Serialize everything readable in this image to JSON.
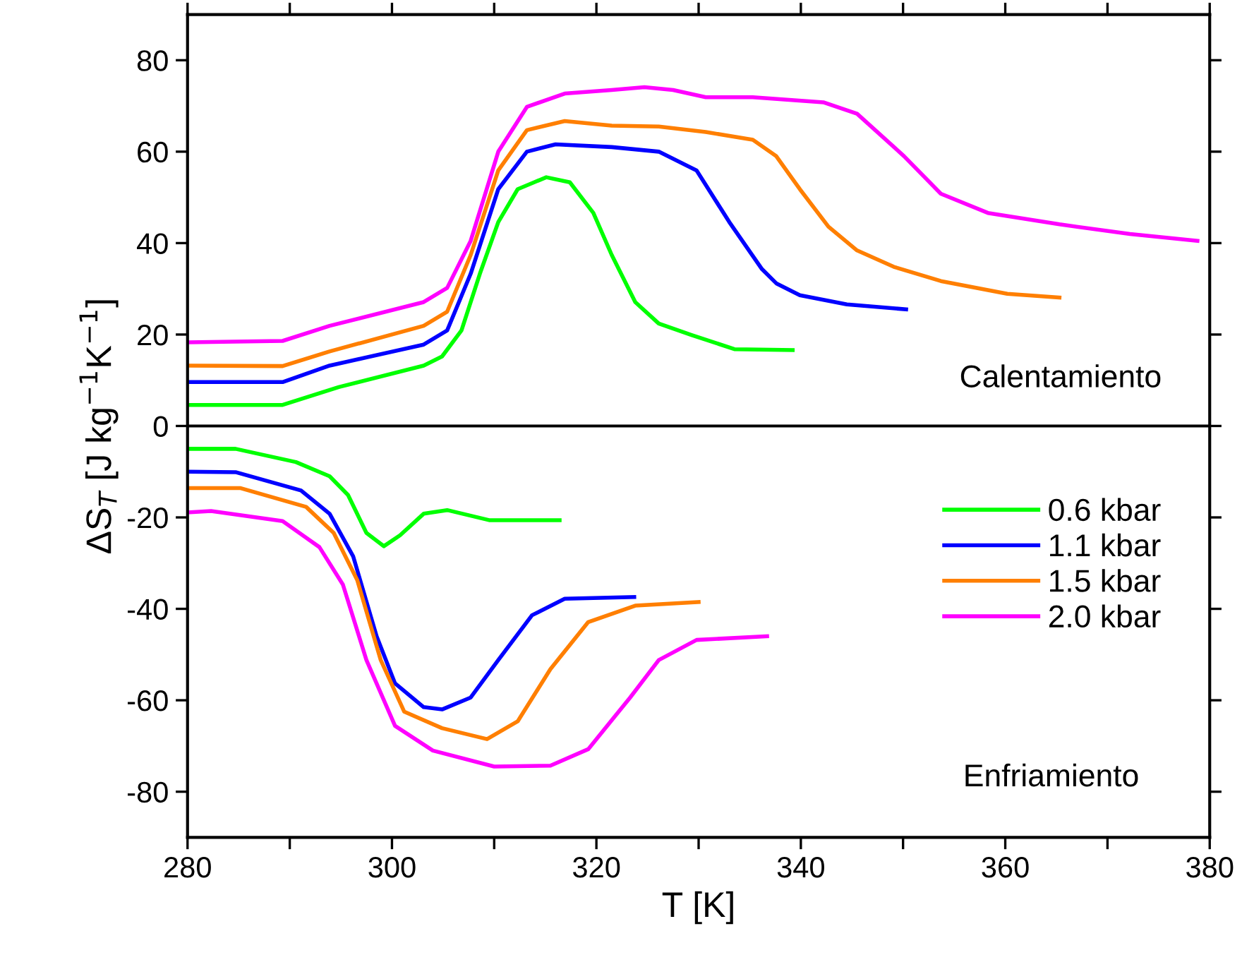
{
  "chart_data": {
    "type": "line",
    "xlabel": "T [K]",
    "ylabel": "ΔS$_{T}$ [J kg$^{−1}$K$^{−1}$]",
    "xlim": [
      280,
      380
    ],
    "ylim": [
      -90,
      90
    ],
    "xticks": [
      280,
      {
        "value": 290,
        "label": null
      },
      300,
      {
        "value": 310,
        "label": null
      },
      320,
      {
        "value": 330,
        "label": null
      },
      340,
      {
        "value": 350,
        "label": null
      },
      360,
      {
        "value": 370,
        "label": null
      },
      380
    ],
    "yticks": [
      -80,
      -60,
      -40,
      -20,
      0,
      20,
      40,
      60,
      80
    ],
    "grid": false,
    "legend": "right",
    "marker": "none",
    "line_style": "solid",
    "ref_lines": [
      {
        "axis": "y",
        "value": 0,
        "color": "#000000"
      }
    ],
    "annotations": [
      "Calentamiento",
      "Enfriamiento"
    ],
    "series": [
      {
        "name": "0.6 kbar",
        "color": "#00ff00",
        "x": [
          280,
          289.3,
          294.8,
          303.1,
          304.9,
          306.8,
          308.6,
          310.4,
          312.3,
          315.1,
          317.4,
          319.7,
          321.5,
          323.8,
          326.1,
          329.3,
          333.5,
          339.2
        ],
        "values": [
          4.6,
          4.6,
          8.5,
          13.2,
          15.2,
          20.9,
          33.3,
          44.6,
          51.8,
          54.4,
          53.3,
          46.6,
          37.4,
          27.1,
          22.4,
          19.9,
          16.8,
          16.6
        ]
      },
      {
        "name": "1.1 kbar",
        "color": "#0000ff",
        "x": [
          280,
          289.3,
          293.9,
          303.1,
          305.4,
          307.7,
          310.4,
          313.2,
          316.0,
          321.5,
          326.1,
          329.8,
          333.0,
          336.2,
          337.6,
          339.9,
          344.5,
          350.3
        ],
        "values": [
          9.6,
          9.6,
          13.2,
          17.8,
          20.9,
          33.3,
          51.8,
          60.0,
          61.6,
          61.0,
          60.0,
          55.9,
          44.6,
          34.3,
          31.2,
          28.6,
          26.6,
          25.5
        ]
      },
      {
        "name": "1.5 kbar",
        "color": "#ff7f00",
        "x": [
          280,
          289.3,
          293.9,
          303.1,
          305.4,
          307.7,
          310.4,
          313.2,
          316.9,
          321.5,
          326.1,
          330.7,
          335.3,
          337.6,
          339.9,
          342.7,
          345.5,
          349.1,
          353.7,
          360.2,
          365.3
        ],
        "values": [
          13.2,
          13.1,
          16.3,
          21.9,
          25.0,
          37.4,
          55.9,
          64.7,
          66.7,
          65.7,
          65.5,
          64.3,
          62.6,
          59.0,
          51.8,
          43.6,
          38.4,
          34.8,
          31.7,
          28.9,
          28.1
        ]
      },
      {
        "name": "2.0 kbar",
        "color": "#ff00ff",
        "x": [
          280,
          289.3,
          293.9,
          303.1,
          305.4,
          307.7,
          310.4,
          313.2,
          316.9,
          321.5,
          324.7,
          327.5,
          330.7,
          335.3,
          342.2,
          345.5,
          350.1,
          353.7,
          358.3,
          365.3,
          372.2,
          378.8
        ],
        "values": [
          18.3,
          18.6,
          21.9,
          27.1,
          30.2,
          40.5,
          60.0,
          69.8,
          72.7,
          73.5,
          74.1,
          73.5,
          71.9,
          71.9,
          70.8,
          68.3,
          59.0,
          50.8,
          46.6,
          44.1,
          42.0,
          40.5
        ]
      },
      {
        "color": "#00ff00",
        "x": [
          280,
          284.7,
          290.6,
          293.9,
          295.7,
          297.5,
          299.2,
          300.8,
          303.1,
          305.4,
          309.5,
          316.4
        ],
        "values": [
          -5.0,
          -5.0,
          -7.9,
          -11.0,
          -15.1,
          -23.4,
          -26.3,
          -23.9,
          -19.2,
          -18.4,
          -20.6,
          -20.6
        ]
      },
      {
        "color": "#0000ff",
        "x": [
          280,
          284.7,
          291.1,
          293.9,
          296.2,
          298.5,
          300.3,
          303.1,
          304.9,
          307.7,
          310.4,
          313.7,
          316.9,
          323.7
        ],
        "values": [
          -10.0,
          -10.1,
          -14.1,
          -19.2,
          -28.5,
          -46.0,
          -56.3,
          -61.5,
          -62.0,
          -59.4,
          -51.2,
          -41.4,
          -37.8,
          -37.4
        ]
      },
      {
        "color": "#ff7f00",
        "x": [
          280,
          285.2,
          291.6,
          294.3,
          296.6,
          298.9,
          301.2,
          304.9,
          309.3,
          312.3,
          315.5,
          319.2,
          323.8,
          330.0
        ],
        "values": [
          -13.6,
          -13.6,
          -17.7,
          -23.4,
          -33.7,
          -51.2,
          -62.5,
          -66.1,
          -68.5,
          -64.6,
          -53.2,
          -42.9,
          -39.3,
          -38.5
        ]
      },
      {
        "color": "#ff00ff",
        "x": [
          280,
          282.3,
          289.3,
          292.9,
          295.2,
          297.5,
          300.3,
          304.0,
          310.0,
          315.5,
          319.2,
          323.3,
          326.1,
          329.8,
          336.7
        ],
        "values": [
          -18.9,
          -18.6,
          -20.8,
          -26.5,
          -34.7,
          -51.2,
          -65.6,
          -71.0,
          -74.5,
          -74.3,
          -70.7,
          -59.4,
          -51.2,
          -46.8,
          -46.0
        ]
      }
    ]
  }
}
